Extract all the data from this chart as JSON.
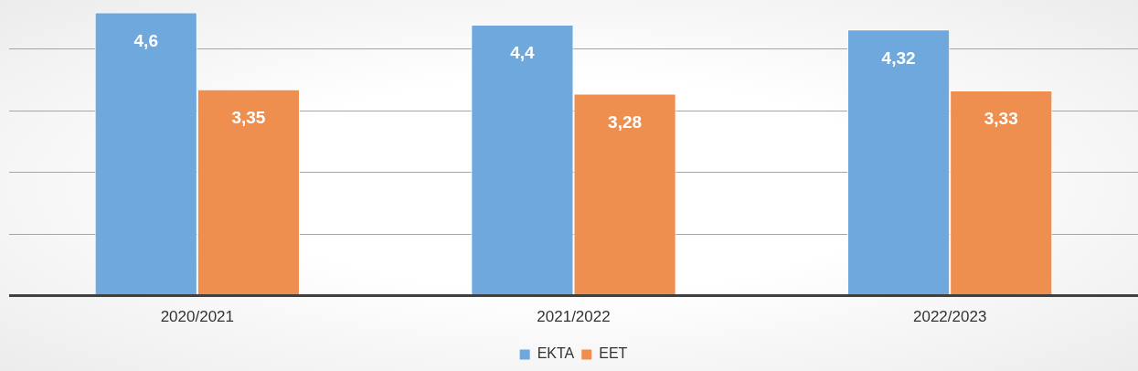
{
  "chart_data": {
    "type": "bar",
    "categories": [
      "2020/2021",
      "2021/2022",
      "2022/2023"
    ],
    "series": [
      {
        "name": "ΕΚΤΑ",
        "color": "#6fa8dc",
        "values": [
          4.6,
          4.4,
          4.32
        ],
        "value_labels": [
          "4,6",
          "4,4",
          "4,32"
        ]
      },
      {
        "name": "ΕΕΤ",
        "color": "#ef8f4f",
        "values": [
          3.35,
          3.28,
          3.33
        ],
        "value_labels": [
          "3,35",
          "3,28",
          "3,33"
        ]
      }
    ],
    "ylim": [
      0,
      4.8
    ],
    "yticks": [
      {
        "value": 0,
        "label": null
      },
      {
        "value": 1,
        "label": null
      },
      {
        "value": 2,
        "label": null
      },
      {
        "value": 3,
        "label": null
      },
      {
        "value": 4,
        "label": null
      }
    ],
    "grid": "y",
    "legend": "bottom",
    "tick_labels": "x"
  }
}
